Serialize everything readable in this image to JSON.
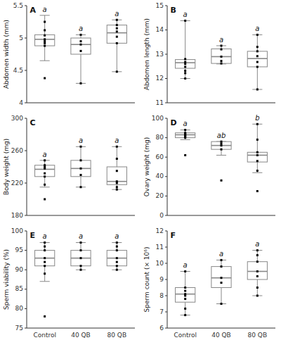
{
  "chart_data": [
    {
      "type": "box",
      "title": "A",
      "ylabel": "Abdomen width (mm)",
      "categories": [
        "Control",
        "40 QB",
        "80 QB"
      ],
      "tick_labels": "y",
      "ylim": [
        4.0,
        5.5
      ],
      "yticks": [
        4,
        4.5,
        5,
        5.5
      ],
      "series": [
        {
          "type": "box",
          "color": "#888888",
          "med": [
            4.98,
            4.9,
            5.08
          ],
          "q1": [
            4.88,
            4.75,
            4.92
          ],
          "q3": [
            5.05,
            5.0,
            5.2
          ],
          "whislo": [
            4.65,
            4.3,
            4.48
          ],
          "whishi": [
            5.35,
            5.05,
            5.28
          ]
        },
        {
          "type": "scatter",
          "color": "#000000",
          "marker": "square",
          "values": [
            [
              5.25,
              5.12,
              5.04,
              4.98,
              4.95,
              4.92,
              4.88,
              4.38
            ],
            [
              5.05,
              4.95,
              4.9,
              4.8,
              4.3
            ],
            [
              5.28,
              5.2,
              5.15,
              5.1,
              5.02,
              4.92,
              4.48
            ]
          ]
        }
      ],
      "annotations": [
        "a",
        "a",
        "a"
      ]
    },
    {
      "type": "box",
      "title": "B",
      "ylabel": "Abdomen length (mm)",
      "categories": [
        "Control",
        "40 QB",
        "80 QB"
      ],
      "tick_labels": "y",
      "ylim": [
        11.0,
        15.0
      ],
      "yticks": [
        11,
        12,
        13,
        14,
        15
      ],
      "series": [
        {
          "type": "box",
          "color": "#888888",
          "med": [
            12.65,
            12.9,
            12.82
          ],
          "q1": [
            12.42,
            12.62,
            12.48
          ],
          "q3": [
            12.78,
            13.22,
            13.12
          ],
          "whislo": [
            12.0,
            12.6,
            11.55
          ],
          "whishi": [
            14.38,
            13.35,
            13.8
          ]
        },
        {
          "type": "scatter",
          "color": "#000000",
          "marker": "square",
          "values": [
            [
              14.38,
              12.8,
              12.68,
              12.6,
              12.48,
              12.32,
              12.22,
              12.0
            ],
            [
              13.35,
              13.2,
              12.9,
              12.72,
              12.62
            ],
            [
              13.8,
              13.3,
              13.12,
              12.92,
              12.68,
              12.48,
              11.55
            ]
          ]
        }
      ],
      "annotations": [
        "a",
        "a",
        "a"
      ]
    },
    {
      "type": "box",
      "title": "C",
      "ylabel": "Body weight (mg)",
      "categories": [
        "Control",
        "40 QB",
        "80 QB"
      ],
      "tick_labels": "y",
      "ylim": [
        180,
        300
      ],
      "yticks": [
        180,
        220,
        260,
        300
      ],
      "series": [
        {
          "type": "box",
          "color": "#888888",
          "med": [
            237,
            238,
            222
          ],
          "q1": [
            228,
            228,
            218
          ],
          "q3": [
            242,
            248,
            240
          ],
          "whislo": [
            215,
            215,
            212
          ],
          "whishi": [
            248,
            265,
            265
          ]
        },
        {
          "type": "scatter",
          "color": "#000000",
          "marker": "square",
          "values": [
            [
              248,
              242,
              240,
              238,
              232,
              228,
              218,
              200
            ],
            [
              265,
              248,
              238,
              230,
              215
            ],
            [
              265,
              250,
              235,
              222,
              220,
              215,
              212
            ]
          ]
        }
      ],
      "annotations": [
        "a",
        "a",
        "a"
      ]
    },
    {
      "type": "box",
      "title": "D",
      "ylabel": "Ovary weight (mg)",
      "categories": [
        "Control",
        "40 QB",
        "80 QB"
      ],
      "tick_labels": "y",
      "ylim": [
        0,
        100
      ],
      "yticks": [
        0,
        20,
        40,
        60,
        80,
        100
      ],
      "series": [
        {
          "type": "box",
          "color": "#888888",
          "med": [
            83,
            72,
            62
          ],
          "q1": [
            80,
            68,
            55
          ],
          "q3": [
            85,
            76,
            65
          ],
          "whislo": [
            78,
            62,
            44
          ],
          "whishi": [
            88,
            76,
            94
          ]
        },
        {
          "type": "scatter",
          "color": "#000000",
          "marker": "square",
          "values": [
            [
              88,
              85,
              84,
              83,
              82,
              81,
              80,
              62
            ],
            [
              76,
              74,
              72,
              68,
              36
            ],
            [
              94,
              78,
              65,
              62,
              56,
              46,
              25
            ]
          ]
        }
      ],
      "annotations": [
        "a",
        "ab",
        "b"
      ]
    },
    {
      "type": "box",
      "title": "E",
      "ylabel": "Sperm viability (%)",
      "categories": [
        "Control",
        "40 QB",
        "80 QB"
      ],
      "ylim": [
        75,
        100
      ],
      "yticks": [
        75,
        80,
        85,
        90,
        95,
        100
      ],
      "series": [
        {
          "type": "box",
          "color": "#888888",
          "med": [
            93,
            93,
            93
          ],
          "q1": [
            91,
            91,
            91
          ],
          "q3": [
            95,
            95,
            95
          ],
          "whislo": [
            87,
            90,
            90
          ],
          "whishi": [
            97,
            97,
            97
          ]
        },
        {
          "type": "scatter",
          "color": "#000000",
          "marker": "square",
          "values": [
            [
              97,
              96,
              95,
              93,
              92,
              91,
              89,
              78
            ],
            [
              97,
              95,
              93,
              91,
              90
            ],
            [
              97,
              96,
              95,
              93,
              92,
              91,
              90
            ]
          ]
        }
      ],
      "annotations": [
        "a",
        "a",
        "a"
      ]
    },
    {
      "type": "box",
      "title": "F",
      "ylabel": "Sperm count (× 10⁶)",
      "categories": [
        "Control",
        "40 QB",
        "80 QB"
      ],
      "ylim": [
        6,
        12
      ],
      "yticks": [
        6,
        7,
        8,
        9,
        10,
        11,
        12
      ],
      "series": [
        {
          "type": "box",
          "color": "#888888",
          "med": [
            8.1,
            9.1,
            9.5
          ],
          "q1": [
            7.6,
            8.5,
            9.0
          ],
          "q3": [
            8.5,
            9.8,
            10.1
          ],
          "whislo": [
            6.8,
            7.5,
            8.0
          ],
          "whishi": [
            9.5,
            10.2,
            10.8
          ]
        },
        {
          "type": "scatter",
          "color": "#000000",
          "marker": "square",
          "values": [
            [
              9.5,
              8.5,
              8.3,
              8.1,
              8.0,
              7.8,
              7.2,
              6.8
            ],
            [
              10.2,
              9.8,
              9.1,
              8.8,
              7.5
            ],
            [
              10.8,
              10.5,
              10.1,
              9.5,
              9.2,
              8.5,
              8.0
            ]
          ]
        }
      ],
      "annotations": [
        "a",
        "a",
        "a"
      ]
    }
  ]
}
